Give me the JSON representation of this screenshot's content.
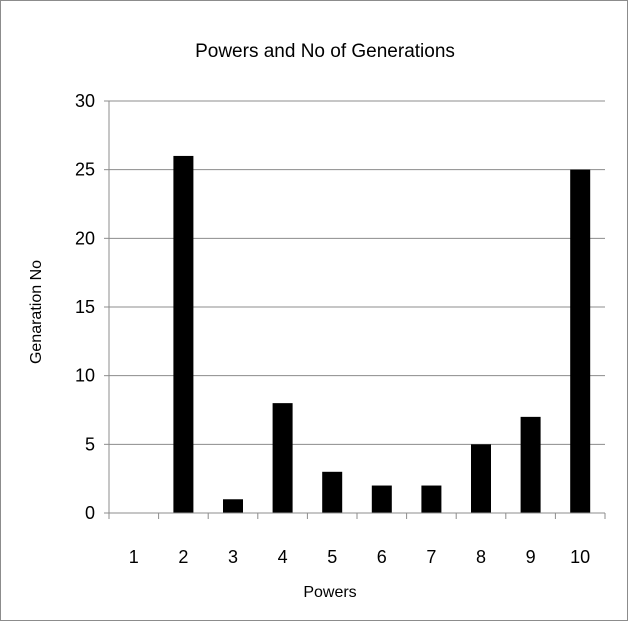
{
  "chart_data": {
    "type": "bar",
    "title": "Powers and No of Generations",
    "xlabel": "Powers",
    "ylabel": "Genaration No",
    "categories": [
      "1",
      "2",
      "3",
      "4",
      "5",
      "6",
      "7",
      "8",
      "9",
      "10"
    ],
    "values": [
      0,
      26,
      1,
      8,
      3,
      2,
      2,
      5,
      7,
      25
    ],
    "ylim": [
      0,
      30
    ],
    "yticks": [
      "0",
      "5",
      "10",
      "15",
      "20",
      "25",
      "30"
    ],
    "grid": true,
    "legend": "none",
    "bar_color": "#000000",
    "grid_color": "#8c8c8c"
  }
}
